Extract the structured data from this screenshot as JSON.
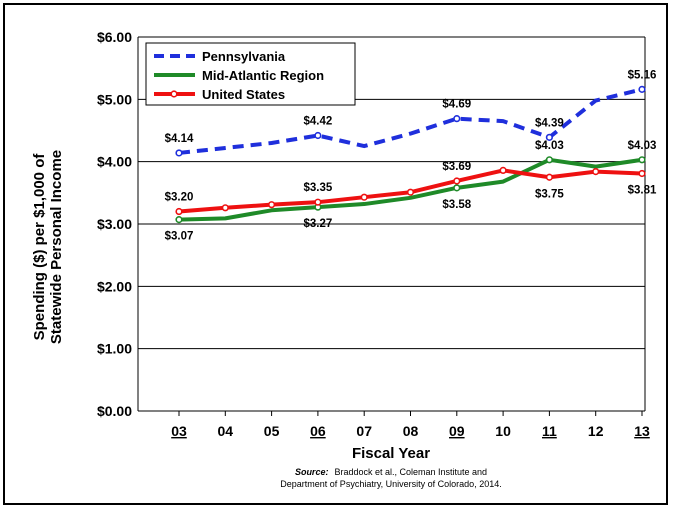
{
  "chart_data": {
    "type": "line",
    "xlabel": "Fiscal Year",
    "ylabel_line1": "Spending ($) per $1,000 of",
    "ylabel_line2": "Statewide Personal Income",
    "categories": [
      "03",
      "04",
      "05",
      "06",
      "07",
      "08",
      "09",
      "10",
      "11",
      "12",
      "13"
    ],
    "underlined_categories": [
      "03",
      "06",
      "09",
      "11",
      "13"
    ],
    "y_ticks": [
      "$0.00",
      "$1.00",
      "$2.00",
      "$3.00",
      "$4.00",
      "$5.00",
      "$6.00"
    ],
    "ylim": [
      0,
      6
    ],
    "grid": "horizontal",
    "legend_position": "top-left",
    "series": [
      {
        "name": "Pennsylvania",
        "color": "#1f2fdc",
        "style": "dashed",
        "values": [
          4.14,
          4.22,
          4.3,
          4.42,
          4.25,
          4.45,
          4.69,
          4.65,
          4.39,
          4.98,
          5.16
        ]
      },
      {
        "name": "Mid-Atlantic Region",
        "color": "#1f8a28",
        "style": "solid",
        "values": [
          3.07,
          3.09,
          3.22,
          3.27,
          3.32,
          3.42,
          3.58,
          3.68,
          4.03,
          3.92,
          4.03
        ]
      },
      {
        "name": "United States",
        "color": "#ee1111",
        "style": "solid-markers",
        "values": [
          3.2,
          3.26,
          3.31,
          3.35,
          3.43,
          3.51,
          3.69,
          3.86,
          3.75,
          3.84,
          3.81
        ]
      }
    ],
    "annotations": [
      {
        "text": "$4.14",
        "series": 0,
        "index": 0,
        "pos": "above"
      },
      {
        "text": "$4.42",
        "series": 0,
        "index": 3,
        "pos": "above"
      },
      {
        "text": "$4.69",
        "series": 0,
        "index": 6,
        "pos": "above"
      },
      {
        "text": "$4.39",
        "series": 0,
        "index": 8,
        "pos": "above"
      },
      {
        "text": "$5.16",
        "series": 0,
        "index": 10,
        "pos": "above"
      },
      {
        "text": "$3.20",
        "series": 2,
        "index": 0,
        "pos": "above"
      },
      {
        "text": "$3.35",
        "series": 2,
        "index": 3,
        "pos": "above"
      },
      {
        "text": "$3.69",
        "series": 2,
        "index": 6,
        "pos": "above"
      },
      {
        "text": "$4.03",
        "series": 1,
        "index": 8,
        "pos": "above"
      },
      {
        "text": "$4.03",
        "series": 1,
        "index": 10,
        "pos": "above"
      },
      {
        "text": "$3.07",
        "series": 1,
        "index": 0,
        "pos": "below"
      },
      {
        "text": "$3.27",
        "series": 1,
        "index": 3,
        "pos": "below"
      },
      {
        "text": "$3.58",
        "series": 1,
        "index": 6,
        "pos": "below"
      },
      {
        "text": "$3.75",
        "series": 2,
        "index": 8,
        "pos": "below"
      },
      {
        "text": "$3.81",
        "series": 2,
        "index": 10,
        "pos": "below"
      }
    ]
  },
  "source": {
    "label": "Source:",
    "line1": "Braddock et al., Coleman Institute and",
    "line2": "Department of Psychiatry, University of Colorado, 2014."
  }
}
